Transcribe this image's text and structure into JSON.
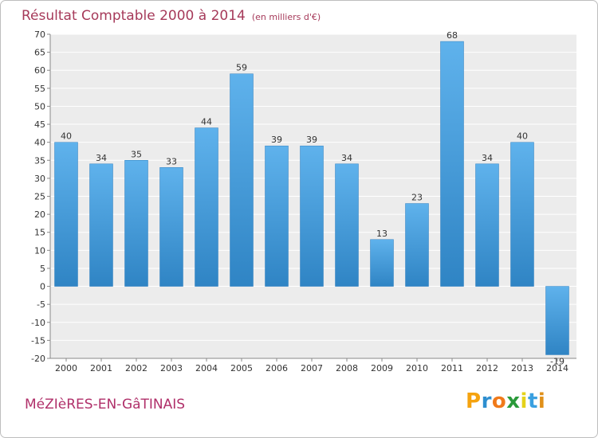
{
  "title": "Résultat Comptable 2000 à 2014",
  "subtitle": "(en milliers d'€)",
  "place": "MéZIèRES-EN-GâTINAIS",
  "brand": {
    "letters": [
      "P",
      "r",
      "o",
      "x",
      "i",
      "t",
      "i"
    ],
    "colors": [
      "#f5a30f",
      "#2e8fd0",
      "#f07a1a",
      "#2a9a3a",
      "#e5d21a",
      "#3aa0e0",
      "#e0901a"
    ]
  },
  "colors": {
    "bar_top": "#5fb2ec",
    "bar_bottom": "#2f84c4",
    "plot_bg": "#ececec",
    "grid": "#ffffff",
    "title": "#a63a5a"
  },
  "chart_data": {
    "type": "bar",
    "title": "Résultat Comptable 2000 à 2014",
    "subtitle": "(en milliers d'€)",
    "categories": [
      "2000",
      "2001",
      "2002",
      "2003",
      "2004",
      "2005",
      "2006",
      "2007",
      "2008",
      "2009",
      "2010",
      "2011",
      "2012",
      "2013",
      "2014"
    ],
    "values": [
      40,
      34,
      35,
      33,
      44,
      59,
      39,
      39,
      34,
      13,
      23,
      68,
      34,
      40,
      -19
    ],
    "labels": [
      "40",
      "34",
      "35",
      "33",
      "44",
      "59",
      "39",
      "39",
      "34",
      "13",
      "23",
      "68",
      "34",
      "40",
      "-19"
    ],
    "ylim": [
      -20,
      70
    ],
    "yticks": [
      70,
      65,
      60,
      55,
      50,
      45,
      40,
      35,
      30,
      25,
      20,
      15,
      10,
      5,
      0,
      -5,
      -10,
      -15,
      -20
    ],
    "ytick_labels": [
      "70",
      "65",
      "60",
      "55",
      "50",
      "45",
      "40",
      "35",
      "30",
      "25",
      "20",
      "15",
      "10",
      "5",
      "0",
      "-5",
      "-10",
      "-15",
      "-20"
    ],
    "grid": true,
    "xlabel": "",
    "ylabel": ""
  }
}
